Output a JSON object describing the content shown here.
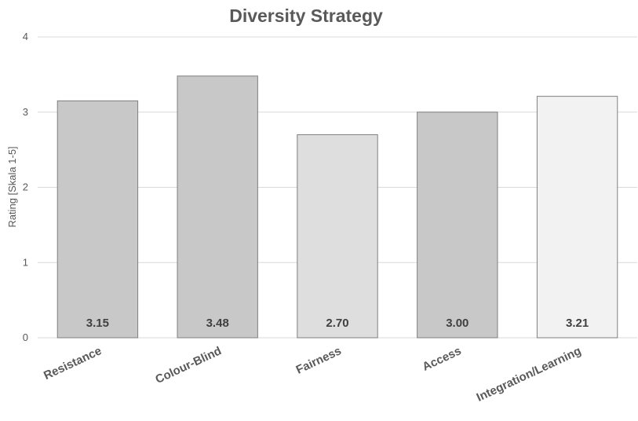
{
  "chart_data": {
    "type": "bar",
    "title": "Diversity Strategy",
    "xlabel": "",
    "ylabel": "Rating [Skala 1-5]",
    "categories": [
      "Resistance",
      "Colour-Blind",
      "Fairness",
      "Access",
      "Integration/Learning"
    ],
    "values": [
      3.15,
      3.48,
      2.7,
      3.0,
      3.21
    ],
    "data_labels": [
      "3.15",
      "3.48",
      "2.70",
      "3.00",
      "3.21"
    ],
    "ylim": [
      0,
      4
    ],
    "yticks": [
      0,
      1,
      2,
      3,
      4
    ],
    "grid": true,
    "legend": "none",
    "bar_colors": [
      "#c8c8c8",
      "#c8c8c8",
      "#dedede",
      "#c8c8c8",
      "#f2f2f2"
    ]
  }
}
